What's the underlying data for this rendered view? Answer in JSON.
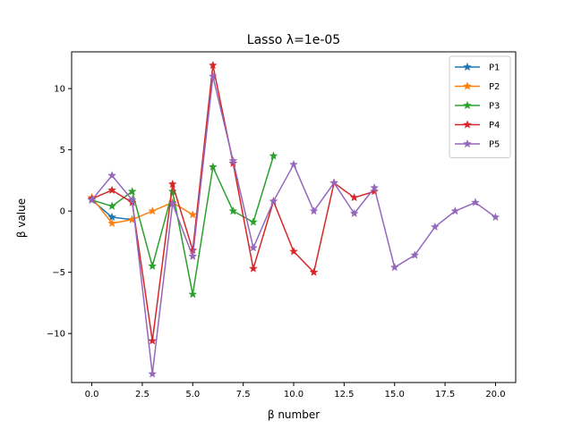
{
  "chart_data": {
    "type": "line",
    "title": "Lasso λ=1e-05",
    "xlabel": "β number",
    "ylabel": "β value",
    "xlim": [
      -1,
      21
    ],
    "ylim": [
      -14,
      13
    ],
    "xticks": [
      0.0,
      2.5,
      5.0,
      7.5,
      10.0,
      12.5,
      15.0,
      17.5,
      20.0
    ],
    "xtick_labels": [
      "0.0",
      "2.5",
      "5.0",
      "7.5",
      "10.0",
      "12.5",
      "15.0",
      "17.5",
      "20.0"
    ],
    "yticks": [
      -10,
      -5,
      0,
      5,
      10
    ],
    "ytick_labels": [
      "−10",
      "−5",
      "0",
      "5",
      "10"
    ],
    "grid": false,
    "legend_position": "top-right",
    "marker": "star",
    "series": [
      {
        "name": "P1",
        "color": "#1f77b4",
        "x": [
          0,
          1,
          2
        ],
        "y": [
          0.9,
          -0.5,
          -0.7
        ]
      },
      {
        "name": "P2",
        "color": "#ff7f0e",
        "x": [
          0,
          1,
          2,
          3,
          4,
          5
        ],
        "y": [
          1.1,
          -1.0,
          -0.7,
          0.0,
          0.7,
          -0.3
        ]
      },
      {
        "name": "P3",
        "color": "#2ca02c",
        "x": [
          0,
          1,
          2,
          3,
          4,
          5,
          6,
          7,
          8,
          9
        ],
        "y": [
          0.9,
          0.4,
          1.6,
          -4.5,
          1.6,
          -6.8,
          3.6,
          0.0,
          -0.9,
          4.5
        ]
      },
      {
        "name": "P4",
        "color": "#d62728",
        "x": [
          0,
          1,
          2,
          3,
          4,
          5,
          6,
          7,
          8,
          9,
          10,
          11,
          12,
          13,
          14
        ],
        "y": [
          1.0,
          1.7,
          0.7,
          -10.6,
          2.2,
          -3.2,
          11.9,
          3.9,
          -4.7,
          0.8,
          -3.3,
          -5.0,
          2.3,
          1.1,
          1.6
        ]
      },
      {
        "name": "P5",
        "color": "#9467bd",
        "x": [
          0,
          1,
          2,
          3,
          4,
          5,
          6,
          7,
          8,
          9,
          10,
          11,
          12,
          13,
          14,
          15,
          16,
          17,
          18,
          19,
          20
        ],
        "y": [
          0.9,
          2.9,
          0.9,
          -13.3,
          0.6,
          -3.7,
          11.0,
          4.1,
          -3.0,
          0.8,
          3.8,
          0.0,
          2.3,
          -0.2,
          1.9,
          -4.6,
          -3.6,
          -1.3,
          0.0,
          0.7,
          -0.5
        ]
      }
    ]
  }
}
